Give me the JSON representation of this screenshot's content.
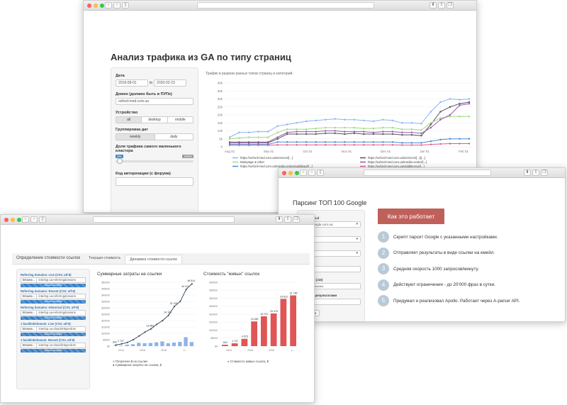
{
  "window1": {
    "title": "Анализ трафика из GA по типу страниц",
    "form": {
      "date_label": "Дата",
      "date_from": "2018-08-01",
      "date_to_word": "to",
      "date_to": "2020-02-23",
      "domain_label": "Домен (должен быть в ПУПе)",
      "domain_value": "oxford-med.com.ua",
      "device_label": "Устройство",
      "device_options": [
        "all",
        "desktop",
        "mobile"
      ],
      "device_selected": "all",
      "grouping_label": "Группировка дат",
      "grouping_options": [
        "weekly",
        "daily"
      ],
      "grouping_selected": "weekly",
      "share_label": "Доля трафика самого маленького кластера",
      "share_min": "1%",
      "share_max": "100%",
      "auth_label": "Код авторизации (с форума)"
    }
  },
  "window2": {
    "title": "Парсинг ТОП 100 Google",
    "form": {
      "tld_label": "Google TLd",
      "tld_value": "www.google.com.ua",
      "label_2": "йфайса",
      "label_3": "ссылка)",
      "label_4": "просами (.txt)",
      "file_value": "No file selected",
      "label_5": "файла с результатами",
      "button": "парсинг"
    },
    "how_button": "Как это работает",
    "steps": [
      {
        "num": "1",
        "text": "Скрипт парсит Google с указанными настройками."
      },
      {
        "num": "2",
        "text": "Отправляет результаты в виде ссылки на емейл."
      },
      {
        "num": "3",
        "text": "Средняя скорость 1000 запросов/минуту."
      },
      {
        "num": "4",
        "text": "Действуют ограничения - до 20'000 фраз в сутки."
      },
      {
        "num": "5",
        "text": "Придумал и реализовал Apollo. Работает через A-parser API."
      }
    ]
  },
  "window3": {
    "tabs": [
      "Определение стоимости ссылок",
      "Текущая стоимость",
      "Динамика стоимости ссылок"
    ],
    "active_tab": 2,
    "groups": [
      {
        "label": "Referring domains: Live (CSV, utf-8)",
        "browse": "Browse...",
        "file": "interlop.ua-referringdomains",
        "progress": "Upload complete"
      },
      {
        "label": "Referring domains: Recent (CSV, utf-8)",
        "browse": "Browse...",
        "file": "interlop.ua-referringdomains",
        "progress": "Upload complete"
      },
      {
        "label": "Referring domains: Historical (CSV, utf-8)",
        "browse": "Browse...",
        "file": "interlop.ua-referringdomains",
        "progress": "Upload complete"
      },
      {
        "label": "1 backlink/domain: Live (CSV, utf-8)",
        "browse": "Browse...",
        "file": "interlop.ua-1backlinkperdom",
        "progress": "Upload complete"
      },
      {
        "label": "1 backlink/domain: Recent (CSV, utf-8)",
        "browse": "Browse...",
        "file": "interlop.ua-1backlinkperdom",
        "progress": "Upload complete"
      }
    ]
  },
  "chart_data": [
    {
      "type": "line",
      "title": "Трафик в разрезе разных типов страниц и категорий.",
      "x_ticks": [
        "Aug 01",
        "Sep 01",
        "Oct 01",
        "Nov 01",
        "Dec 01",
        "Jan 01",
        "Feb 01"
      ],
      "ylim": [
        0,
        40000
      ],
      "y_ticks": [
        "0",
        "5k",
        "10k",
        "15k",
        "20k",
        "25k",
        "30k",
        "35k",
        "40k"
      ],
      "grid": true,
      "legend_position": "bottom",
      "series": [
        {
          "name": "https://oxford-med.com.ua/services/[...]",
          "color": "#8ab4f8",
          "values": [
            6000,
            9000,
            9000,
            9500,
            9500,
            13000,
            14000,
            15000,
            16000,
            16500,
            17000,
            17500,
            17000,
            17000,
            16500,
            16000,
            17000,
            16500,
            15000,
            15000,
            14500,
            22000,
            28000,
            30000,
            29500,
            30000
          ]
        },
        {
          "name": "https://oxford-med.com.ua/services/[...]/[...]",
          "color": "#555555",
          "values": [
            2500,
            2500,
            2500,
            2500,
            2500,
            5000,
            8000,
            8000,
            8000,
            8000,
            8500,
            8500,
            8000,
            8500,
            8000,
            8000,
            8000,
            8000,
            7500,
            7500,
            7000,
            14000,
            22000,
            25000,
            27000,
            28000
          ]
        },
        {
          "name": "Mainpage & other",
          "color": "#a0d880",
          "values": [
            5000,
            5500,
            6000,
            6000,
            6000,
            9000,
            11000,
            11000,
            11000,
            11500,
            12000,
            12000,
            12000,
            12000,
            11500,
            11500,
            12000,
            12000,
            11000,
            11000,
            10500,
            15000,
            18000,
            19000,
            19000,
            19000
          ]
        },
        {
          "name": "https://oxford-med.com.ua/media-center/[...]",
          "color": "#9b59b6",
          "values": [
            3000,
            3000,
            3000,
            3000,
            3000,
            6000,
            9000,
            9500,
            9500,
            9500,
            10000,
            10000,
            9500,
            9500,
            9500,
            9000,
            9500,
            9500,
            9000,
            9000,
            8500,
            12000,
            17000,
            20000,
            26000,
            27000
          ]
        },
        {
          "name": "https://oxford-med.com.ua/media-center/publikacii/[...]",
          "color": "#4a8ad4",
          "values": [
            1500,
            1500,
            1500,
            1500,
            1500,
            3000,
            3000,
            3000,
            3000,
            3000,
            3000,
            3000,
            3000,
            3000,
            3000,
            3000,
            3000,
            3000,
            2500,
            2500,
            2500,
            3500,
            4500,
            5000,
            5000,
            5000
          ]
        },
        {
          "name": "https://oxford-med.com.ua/viddilennya/[...]",
          "color": "#e05a8c",
          "values": [
            1000,
            1000,
            1000,
            1000,
            1000,
            1200,
            1200,
            1200,
            1200,
            1200,
            1200,
            1200,
            1200,
            1200,
            1200,
            1200,
            1200,
            1200,
            1100,
            1100,
            1100,
            1500,
            1800,
            2000,
            2000,
            2000
          ]
        }
      ]
    },
    {
      "type": "bar",
      "title": "Суммарные затраты на ссылки",
      "x_ticks": [
        "2014",
        "2016",
        "2018",
        "2..."
      ],
      "y_ticks": [
        "$0",
        "$5000",
        "$10000",
        "$15000",
        "$20000",
        "$25000",
        "$30000",
        "$35000",
        "$40000",
        "$45000",
        "$50000"
      ],
      "ylim": [
        0,
        50000
      ],
      "bar_values": [
        300,
        400,
        1200,
        1500,
        2600,
        2300,
        2500,
        3000,
        3700,
        2300,
        2800,
        3300,
        7000,
        3200
      ],
      "line_values": [
        842,
        1747,
        2902,
        5000,
        8000,
        11000,
        13483,
        17000,
        20000,
        24106,
        31125,
        35000,
        44417,
        48814
      ],
      "line_labels": [
        "842",
        "1 747",
        "",
        "",
        "",
        "",
        "13 483",
        "",
        "",
        "24 106",
        "31 125",
        "",
        "44 417",
        "48 814"
      ],
      "legend": [
        "Потрачено $ на ссылки",
        "Суммарные затраты на ссылки, $"
      ],
      "bar_color": "#8cb4e8",
      "line_color": "#2c3e50"
    },
    {
      "type": "bar",
      "title": "Стоимость \"живых\" ссылок",
      "x_ticks": [
        "2014",
        "2016",
        "2018",
        "2..."
      ],
      "y_ticks": [
        "$0",
        "$5000",
        "$10000",
        "$15000",
        "$20000",
        "$25000",
        "$30000",
        "$35000",
        "$40000"
      ],
      "ylim": [
        0,
        40000
      ],
      "bar_values": [
        842,
        1747,
        4575,
        15482,
        18701,
        20475,
        29615,
        31785
      ],
      "bar_labels": [
        "842",
        "1 747",
        "4 575",
        "15 482",
        "18 701",
        "20 475",
        "29 615",
        "31 785"
      ],
      "legend": [
        "Стоимость живых ссылок, $"
      ],
      "bar_color": "#e05555"
    }
  ]
}
